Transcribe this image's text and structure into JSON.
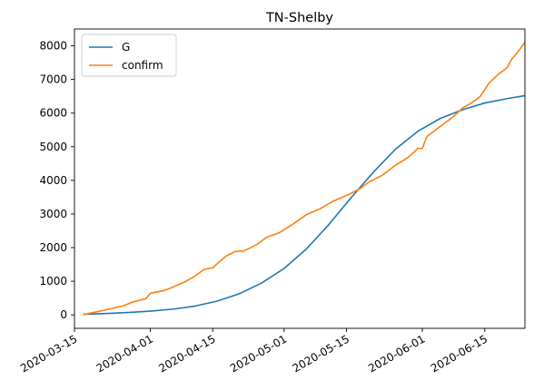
{
  "chart_data": {
    "type": "line",
    "title": "TN-Shelby",
    "xlabel": "",
    "ylabel": "",
    "x_type": "date",
    "xlim": [
      "2020-03-15",
      "2020-06-24"
    ],
    "ylim": [
      -400,
      8500
    ],
    "x_ticks": [
      "2020-03-15",
      "2020-04-01",
      "2020-04-15",
      "2020-05-01",
      "2020-05-15",
      "2020-06-01",
      "2020-06-15"
    ],
    "y_ticks": [
      0,
      1000,
      2000,
      3000,
      4000,
      5000,
      6000,
      7000,
      8000
    ],
    "grid": false,
    "legend_position": "upper-left",
    "series": [
      {
        "name": "G",
        "color": "#1f77b4",
        "points": [
          [
            "2020-03-17",
            20
          ],
          [
            "2020-03-22",
            40
          ],
          [
            "2020-03-27",
            70
          ],
          [
            "2020-04-01",
            110
          ],
          [
            "2020-04-06",
            170
          ],
          [
            "2020-04-11",
            260
          ],
          [
            "2020-04-16",
            410
          ],
          [
            "2020-04-21",
            630
          ],
          [
            "2020-04-26",
            950
          ],
          [
            "2020-05-01",
            1380
          ],
          [
            "2020-05-06",
            1960
          ],
          [
            "2020-05-11",
            2680
          ],
          [
            "2020-05-16",
            3480
          ],
          [
            "2020-05-21",
            4240
          ],
          [
            "2020-05-26",
            4930
          ],
          [
            "2020-05-31",
            5460
          ],
          [
            "2020-06-05",
            5840
          ],
          [
            "2020-06-10",
            6100
          ],
          [
            "2020-06-15",
            6300
          ],
          [
            "2020-06-20",
            6430
          ],
          [
            "2020-06-24",
            6520
          ]
        ]
      },
      {
        "name": "confirm",
        "color": "#ff7f0e",
        "points": [
          [
            "2020-03-17",
            10
          ],
          [
            "2020-03-20",
            90
          ],
          [
            "2020-03-23",
            180
          ],
          [
            "2020-03-26",
            270
          ],
          [
            "2020-03-28",
            380
          ],
          [
            "2020-03-31",
            480
          ],
          [
            "2020-04-01",
            640
          ],
          [
            "2020-04-04",
            720
          ],
          [
            "2020-04-06",
            820
          ],
          [
            "2020-04-09",
            1000
          ],
          [
            "2020-04-11",
            1150
          ],
          [
            "2020-04-13",
            1350
          ],
          [
            "2020-04-15",
            1400
          ],
          [
            "2020-04-16",
            1520
          ],
          [
            "2020-04-18",
            1750
          ],
          [
            "2020-04-20",
            1880
          ],
          [
            "2020-04-22",
            1900
          ],
          [
            "2020-04-25",
            2100
          ],
          [
            "2020-04-27",
            2300
          ],
          [
            "2020-04-30",
            2450
          ],
          [
            "2020-05-03",
            2700
          ],
          [
            "2020-05-06",
            2980
          ],
          [
            "2020-05-09",
            3150
          ],
          [
            "2020-05-12",
            3380
          ],
          [
            "2020-05-15",
            3550
          ],
          [
            "2020-05-18",
            3750
          ],
          [
            "2020-05-20",
            3950
          ],
          [
            "2020-05-23",
            4150
          ],
          [
            "2020-05-26",
            4450
          ],
          [
            "2020-05-29",
            4700
          ],
          [
            "2020-05-31",
            4950
          ],
          [
            "2020-06-01",
            4950
          ],
          [
            "2020-06-02",
            5300
          ],
          [
            "2020-06-05",
            5600
          ],
          [
            "2020-06-08",
            5900
          ],
          [
            "2020-06-10",
            6150
          ],
          [
            "2020-06-12",
            6300
          ],
          [
            "2020-06-14",
            6500
          ],
          [
            "2020-06-16",
            6900
          ],
          [
            "2020-06-18",
            7150
          ],
          [
            "2020-06-20",
            7350
          ],
          [
            "2020-06-21",
            7600
          ],
          [
            "2020-06-22",
            7750
          ],
          [
            "2020-06-24",
            8100
          ]
        ]
      }
    ]
  }
}
